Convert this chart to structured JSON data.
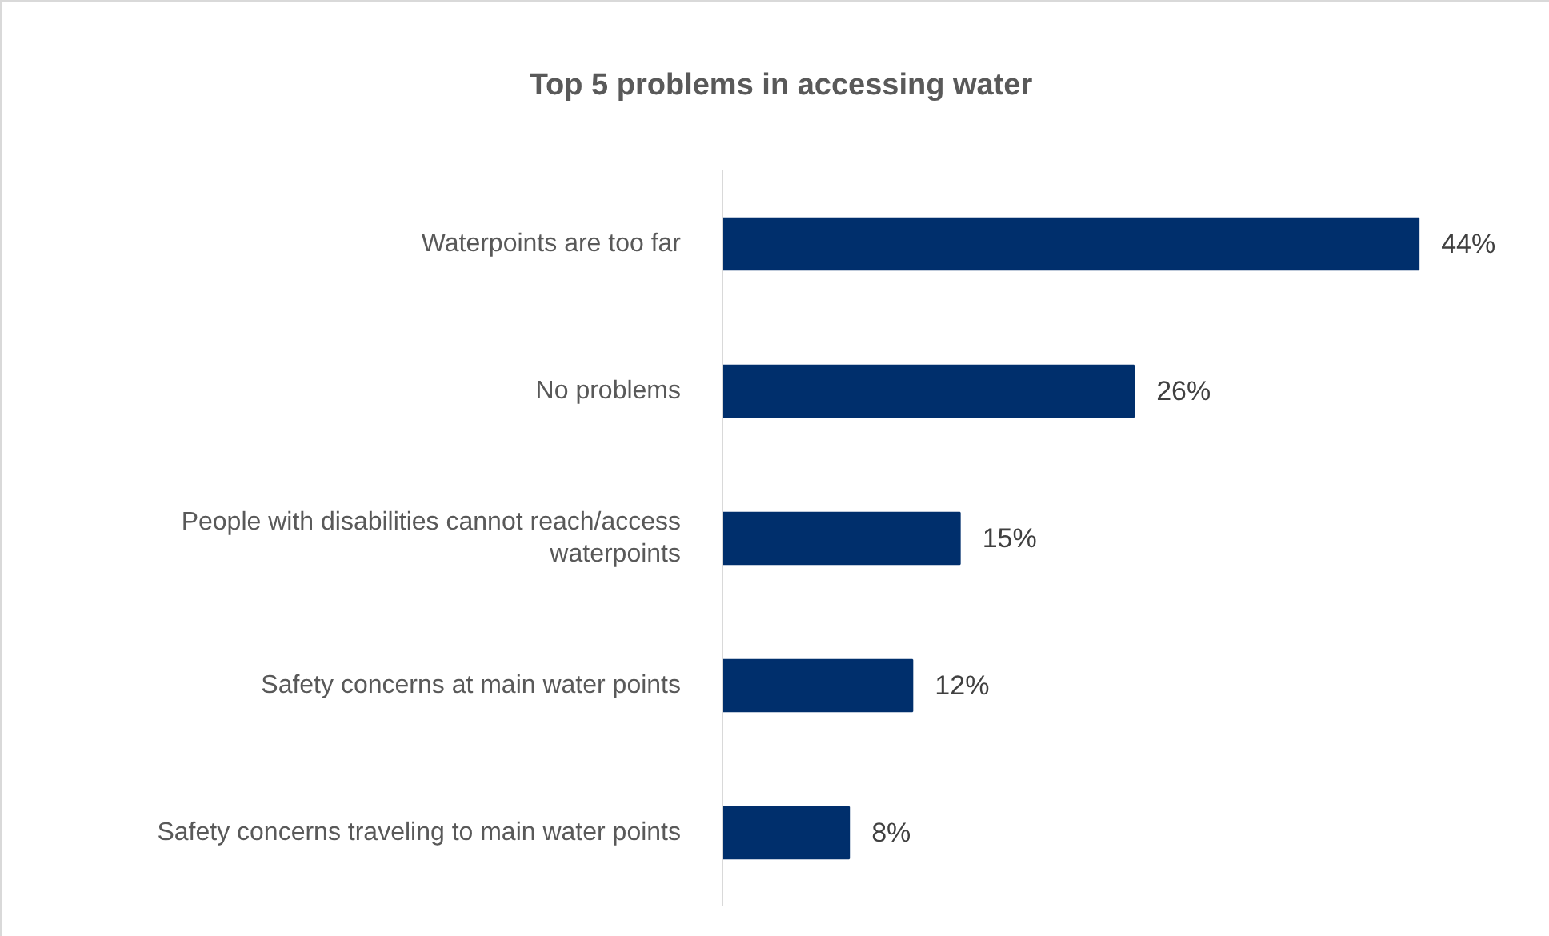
{
  "chart_data": {
    "type": "bar",
    "title": "Top 5 problems in accessing water",
    "orientation": "horizontal",
    "categories": [
      "Waterpoints are too far",
      "No problems",
      "People with disabilities cannot reach/access waterpoints",
      "Safety concerns at main water points",
      "Safety concerns traveling to main water points"
    ],
    "values": [
      44,
      26,
      15,
      12,
      8
    ],
    "value_labels": [
      "44%",
      "26%",
      "15%",
      "12%",
      "8%"
    ],
    "color": "#002f6c"
  }
}
